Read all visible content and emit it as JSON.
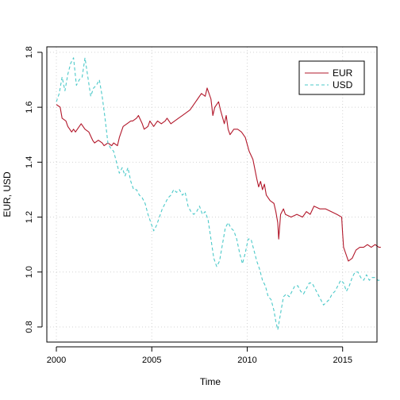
{
  "chart_data": {
    "type": "line",
    "title": "",
    "xlabel": "Time",
    "ylabel": "EUR, USD",
    "xlim": [
      1999.5,
      2016.8
    ],
    "ylim": [
      0.745,
      1.82
    ],
    "x_ticks": [
      2000,
      2005,
      2010,
      2015
    ],
    "x_tick_labels": [
      "2000",
      "2005",
      "2010",
      "2015"
    ],
    "y_ticks": [
      0.8,
      1.0,
      1.2,
      1.4,
      1.6,
      1.8
    ],
    "y_tick_labels": [
      "0.8",
      "1.0",
      "1.2",
      "1.4",
      "1.6",
      "1.8"
    ],
    "grid": true,
    "legend_position": "top-right",
    "series": [
      {
        "name": "EUR",
        "color": "#b2182b",
        "dash": "solid",
        "points": [
          [
            2000.0,
            1.61
          ],
          [
            2000.2,
            1.6
          ],
          [
            2000.3,
            1.56
          ],
          [
            2000.5,
            1.55
          ],
          [
            2000.6,
            1.53
          ],
          [
            2000.8,
            1.51
          ],
          [
            2000.9,
            1.52
          ],
          [
            2001.0,
            1.51
          ],
          [
            2001.2,
            1.53
          ],
          [
            2001.3,
            1.54
          ],
          [
            2001.5,
            1.52
          ],
          [
            2001.7,
            1.51
          ],
          [
            2001.9,
            1.48
          ],
          [
            2002.0,
            1.47
          ],
          [
            2002.2,
            1.48
          ],
          [
            2002.4,
            1.47
          ],
          [
            2002.5,
            1.46
          ],
          [
            2002.7,
            1.47
          ],
          [
            2002.9,
            1.46
          ],
          [
            2003.0,
            1.47
          ],
          [
            2003.2,
            1.46
          ],
          [
            2003.3,
            1.49
          ],
          [
            2003.5,
            1.53
          ],
          [
            2003.7,
            1.54
          ],
          [
            2003.9,
            1.55
          ],
          [
            2004.0,
            1.55
          ],
          [
            2004.2,
            1.56
          ],
          [
            2004.3,
            1.57
          ],
          [
            2004.5,
            1.54
          ],
          [
            2004.6,
            1.52
          ],
          [
            2004.8,
            1.53
          ],
          [
            2004.9,
            1.55
          ],
          [
            2005.1,
            1.53
          ],
          [
            2005.3,
            1.55
          ],
          [
            2005.5,
            1.54
          ],
          [
            2005.7,
            1.55
          ],
          [
            2005.8,
            1.56
          ],
          [
            2006.0,
            1.54
          ],
          [
            2006.2,
            1.55
          ],
          [
            2006.4,
            1.56
          ],
          [
            2006.6,
            1.57
          ],
          [
            2006.8,
            1.58
          ],
          [
            2007.0,
            1.59
          ],
          [
            2007.2,
            1.61
          ],
          [
            2007.4,
            1.63
          ],
          [
            2007.6,
            1.65
          ],
          [
            2007.8,
            1.64
          ],
          [
            2007.9,
            1.67
          ],
          [
            2008.1,
            1.63
          ],
          [
            2008.2,
            1.57
          ],
          [
            2008.3,
            1.6
          ],
          [
            2008.5,
            1.62
          ],
          [
            2008.6,
            1.59
          ],
          [
            2008.8,
            1.54
          ],
          [
            2008.9,
            1.57
          ],
          [
            2009.0,
            1.52
          ],
          [
            2009.1,
            1.5
          ],
          [
            2009.2,
            1.51
          ],
          [
            2009.3,
            1.52
          ],
          [
            2009.5,
            1.52
          ],
          [
            2009.7,
            1.51
          ],
          [
            2009.9,
            1.49
          ],
          [
            2010.1,
            1.44
          ],
          [
            2010.3,
            1.41
          ],
          [
            2010.5,
            1.34
          ],
          [
            2010.6,
            1.31
          ],
          [
            2010.7,
            1.33
          ],
          [
            2010.8,
            1.3
          ],
          [
            2010.9,
            1.32
          ],
          [
            2011.0,
            1.28
          ],
          [
            2011.2,
            1.26
          ],
          [
            2011.4,
            1.25
          ],
          [
            2011.5,
            1.22
          ],
          [
            2011.6,
            1.18
          ],
          [
            2011.65,
            1.12
          ],
          [
            2011.75,
            1.21
          ],
          [
            2011.9,
            1.23
          ],
          [
            2012.0,
            1.21
          ],
          [
            2012.3,
            1.2
          ],
          [
            2012.6,
            1.21
          ],
          [
            2012.9,
            1.2
          ],
          [
            2013.1,
            1.22
          ],
          [
            2013.3,
            1.21
          ],
          [
            2013.5,
            1.24
          ],
          [
            2013.8,
            1.23
          ],
          [
            2014.1,
            1.23
          ],
          [
            2014.4,
            1.22
          ],
          [
            2014.7,
            1.21
          ],
          [
            2014.95,
            1.2
          ],
          [
            2015.0,
            1.14
          ],
          [
            2015.05,
            1.09
          ],
          [
            2015.2,
            1.06
          ],
          [
            2015.3,
            1.04
          ],
          [
            2015.5,
            1.05
          ],
          [
            2015.7,
            1.08
          ],
          [
            2015.9,
            1.09
          ],
          [
            2016.1,
            1.09
          ],
          [
            2016.3,
            1.1
          ],
          [
            2016.5,
            1.09
          ],
          [
            2016.7,
            1.1
          ],
          [
            2016.9,
            1.09
          ],
          [
            2017.0,
            1.09
          ]
        ]
      },
      {
        "name": "USD",
        "color": "#4bc9c9",
        "dash": "dashed",
        "points": [
          [
            2000.0,
            1.62
          ],
          [
            2000.15,
            1.65
          ],
          [
            2000.3,
            1.71
          ],
          [
            2000.45,
            1.66
          ],
          [
            2000.6,
            1.72
          ],
          [
            2000.75,
            1.76
          ],
          [
            2000.9,
            1.78
          ],
          [
            2001.05,
            1.68
          ],
          [
            2001.2,
            1.7
          ],
          [
            2001.35,
            1.71
          ],
          [
            2001.5,
            1.78
          ],
          [
            2001.65,
            1.71
          ],
          [
            2001.8,
            1.64
          ],
          [
            2001.95,
            1.67
          ],
          [
            2002.1,
            1.68
          ],
          [
            2002.25,
            1.7
          ],
          [
            2002.4,
            1.64
          ],
          [
            2002.55,
            1.56
          ],
          [
            2002.7,
            1.47
          ],
          [
            2002.85,
            1.45
          ],
          [
            2003.0,
            1.44
          ],
          [
            2003.15,
            1.4
          ],
          [
            2003.3,
            1.36
          ],
          [
            2003.45,
            1.38
          ],
          [
            2003.6,
            1.35
          ],
          [
            2003.75,
            1.38
          ],
          [
            2003.9,
            1.33
          ],
          [
            2004.05,
            1.3
          ],
          [
            2004.2,
            1.3
          ],
          [
            2004.35,
            1.28
          ],
          [
            2004.5,
            1.27
          ],
          [
            2004.65,
            1.25
          ],
          [
            2004.8,
            1.21
          ],
          [
            2004.95,
            1.18
          ],
          [
            2005.1,
            1.15
          ],
          [
            2005.25,
            1.17
          ],
          [
            2005.4,
            1.2
          ],
          [
            2005.55,
            1.23
          ],
          [
            2005.7,
            1.25
          ],
          [
            2005.85,
            1.27
          ],
          [
            2006.0,
            1.28
          ],
          [
            2006.15,
            1.3
          ],
          [
            2006.3,
            1.29
          ],
          [
            2006.45,
            1.3
          ],
          [
            2006.6,
            1.28
          ],
          [
            2006.75,
            1.29
          ],
          [
            2006.9,
            1.24
          ],
          [
            2007.05,
            1.22
          ],
          [
            2007.2,
            1.21
          ],
          [
            2007.35,
            1.22
          ],
          [
            2007.5,
            1.24
          ],
          [
            2007.65,
            1.21
          ],
          [
            2007.8,
            1.22
          ],
          [
            2007.95,
            1.19
          ],
          [
            2008.1,
            1.12
          ],
          [
            2008.25,
            1.05
          ],
          [
            2008.4,
            1.02
          ],
          [
            2008.55,
            1.04
          ],
          [
            2008.7,
            1.1
          ],
          [
            2008.85,
            1.16
          ],
          [
            2009.0,
            1.18
          ],
          [
            2009.15,
            1.16
          ],
          [
            2009.3,
            1.15
          ],
          [
            2009.45,
            1.12
          ],
          [
            2009.6,
            1.07
          ],
          [
            2009.75,
            1.03
          ],
          [
            2009.9,
            1.07
          ],
          [
            2010.05,
            1.12
          ],
          [
            2010.2,
            1.12
          ],
          [
            2010.35,
            1.08
          ],
          [
            2010.5,
            1.04
          ],
          [
            2010.65,
            1.01
          ],
          [
            2010.8,
            0.97
          ],
          [
            2010.95,
            0.95
          ],
          [
            2011.1,
            0.91
          ],
          [
            2011.25,
            0.9
          ],
          [
            2011.4,
            0.86
          ],
          [
            2011.5,
            0.82
          ],
          [
            2011.6,
            0.79
          ],
          [
            2011.75,
            0.85
          ],
          [
            2011.9,
            0.91
          ],
          [
            2012.05,
            0.92
          ],
          [
            2012.2,
            0.91
          ],
          [
            2012.35,
            0.93
          ],
          [
            2012.5,
            0.95
          ],
          [
            2012.65,
            0.95
          ],
          [
            2012.8,
            0.93
          ],
          [
            2012.95,
            0.92
          ],
          [
            2013.1,
            0.94
          ],
          [
            2013.25,
            0.96
          ],
          [
            2013.4,
            0.96
          ],
          [
            2013.55,
            0.94
          ],
          [
            2013.7,
            0.92
          ],
          [
            2013.85,
            0.9
          ],
          [
            2014.0,
            0.88
          ],
          [
            2014.15,
            0.89
          ],
          [
            2014.3,
            0.9
          ],
          [
            2014.45,
            0.92
          ],
          [
            2014.6,
            0.93
          ],
          [
            2014.75,
            0.95
          ],
          [
            2014.9,
            0.97
          ],
          [
            2015.05,
            0.96
          ],
          [
            2015.2,
            0.93
          ],
          [
            2015.35,
            0.95
          ],
          [
            2015.5,
            0.98
          ],
          [
            2015.65,
            1.0
          ],
          [
            2015.8,
            1.0
          ],
          [
            2015.95,
            0.98
          ],
          [
            2016.1,
            0.97
          ],
          [
            2016.25,
            0.99
          ],
          [
            2016.4,
            0.97
          ],
          [
            2016.55,
            0.98
          ],
          [
            2016.7,
            0.98
          ],
          [
            2016.85,
            0.97
          ],
          [
            2017.0,
            0.97
          ]
        ]
      }
    ]
  }
}
